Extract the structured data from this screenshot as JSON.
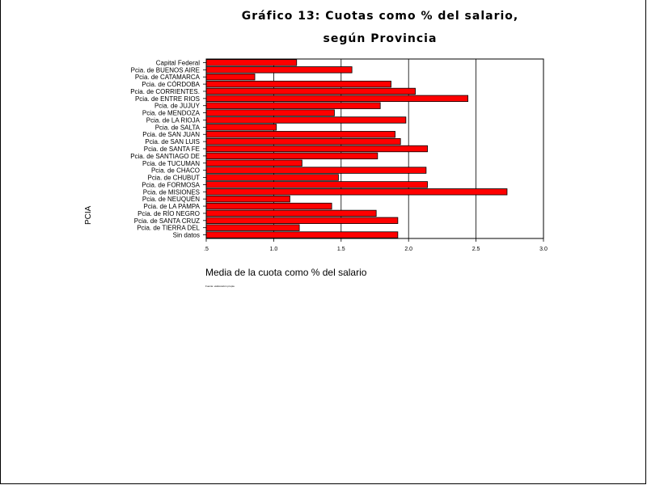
{
  "chart_data": {
    "type": "bar",
    "orientation": "horizontal",
    "title_line1": "Gráfico 13: Cuotas como % del salario,",
    "title_line2": "según Provincia",
    "xlabel": "Media de la cuota como % del salario",
    "ylabel": "PCIA",
    "xlim": [
      0.5,
      3.0
    ],
    "xticks": [
      ".5",
      "1.0",
      "1.5",
      "2.0",
      "2.5",
      "3.0"
    ],
    "xtick_values": [
      0.5,
      1.0,
      1.5,
      2.0,
      2.5,
      3.0
    ],
    "grid": "vertical",
    "bar_color": "#ff0000",
    "footnote": "Fuente: elaboración propia",
    "categories": [
      "Capital Federal",
      "Pcia. de BUENOS AIRE",
      "Pcia. de CATAMARCA",
      "Pcia. de CÓRDOBA",
      "Pcia. de CORRIENTES.",
      "Pcia. de ENTRE RIOS",
      "Pcia. de JUJUY",
      "Pcia. de MENDOZA",
      "Pcia. de LA RIOJA",
      "Pcia. de SALTA",
      "Pcia. de SAN JUAN",
      "Pcia. de SAN LUIS",
      "Pcia. de SANTA FE",
      "Pcia. de SANTIAGO DE",
      "Pcia. de TUCUMAN",
      "Pcia. de CHACO",
      "Pcia. de CHUBUT",
      "Pcia. de FORMOSA",
      "Pcia. de MISIONES",
      "Pcia. de NEUQUÉN",
      "Pcia. de LA PAMPA",
      "Pcia. de RÍO NEGRO",
      "Pcia. de SANTA CRUZ",
      "Pcia. de TIERRA DEL",
      "Sin datos"
    ],
    "values": [
      1.17,
      1.58,
      0.86,
      1.87,
      2.05,
      2.44,
      1.79,
      1.45,
      1.98,
      1.02,
      1.9,
      1.94,
      2.14,
      1.77,
      1.21,
      2.13,
      1.48,
      2.14,
      2.73,
      1.12,
      1.43,
      1.76,
      1.92,
      1.19,
      1.92
    ]
  }
}
